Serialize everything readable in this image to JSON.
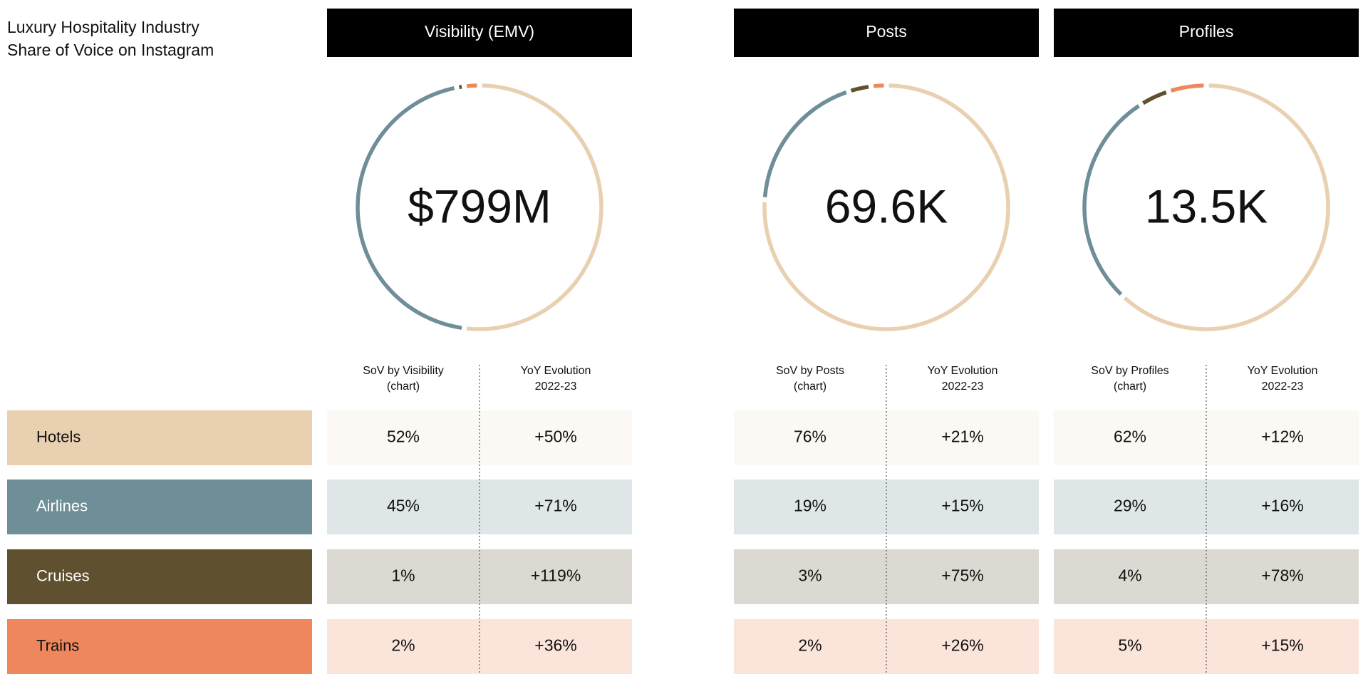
{
  "header": {
    "title": "Luxury Hospitality Industry",
    "subtitle": "Share of Voice on Instagram"
  },
  "legend": {
    "categories": [
      "Hotels",
      "Airlines",
      "Cruises",
      "Trains"
    ],
    "colors": [
      "#e8d0b0",
      "#6e8e98",
      "#5f5030",
      "#ef875c"
    ]
  },
  "chart_data": [
    {
      "type": "donut",
      "title": "Visibility (EMV)",
      "center_label": "$799M",
      "value_header": [
        "SoV by Visibility",
        "(chart)"
      ],
      "yoy_header": [
        "YoY Evolution",
        "2022-23"
      ],
      "values": [
        52,
        45,
        1,
        2
      ],
      "value_labels": [
        "52%",
        "45%",
        "1%",
        "2%"
      ],
      "yoy_labels": [
        "+50%",
        "+71%",
        "+119%",
        "+36%"
      ]
    },
    {
      "type": "donut",
      "title": "Posts",
      "center_label": "69.6K",
      "value_header": [
        "SoV by Posts",
        "(chart)"
      ],
      "yoy_header": [
        "YoY Evolution",
        "2022-23"
      ],
      "values": [
        76,
        19,
        3,
        2
      ],
      "value_labels": [
        "76%",
        "19%",
        "3%",
        "2%"
      ],
      "yoy_labels": [
        "+21%",
        "+15%",
        "+75%",
        "+26%"
      ]
    },
    {
      "type": "donut",
      "title": "Profiles",
      "center_label": "13.5K",
      "value_header": [
        "SoV by Profiles",
        "(chart)"
      ],
      "yoy_header": [
        "YoY Evolution",
        "2022-23"
      ],
      "values": [
        62,
        29,
        4,
        5
      ],
      "value_labels": [
        "62%",
        "29%",
        "4%",
        "5%"
      ],
      "yoy_labels": [
        "+12%",
        "+16%",
        "+78%",
        "+15%"
      ]
    }
  ]
}
